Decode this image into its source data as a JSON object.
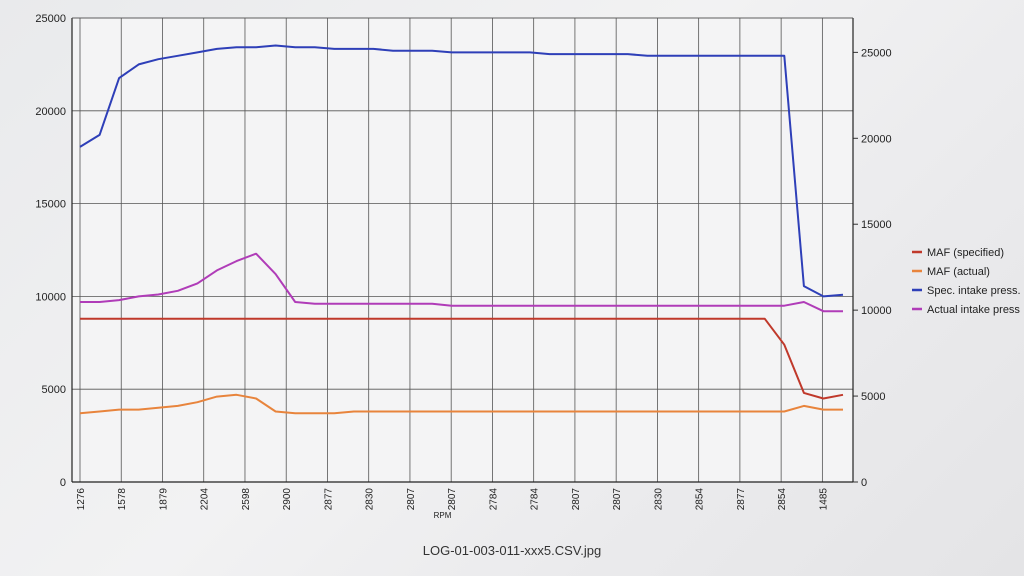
{
  "file_caption": "LOG-01-003-011-xxx5.CSV.jpg",
  "chart_data": {
    "type": "line",
    "title": "",
    "xlabel": "RPM",
    "ylabel": "",
    "y_left": {
      "ylim": [
        0,
        25000
      ],
      "ticks": [
        0,
        5000,
        10000,
        15000,
        20000,
        25000
      ]
    },
    "y_right": {
      "ylim": [
        0,
        27000
      ],
      "ticks": [
        0,
        5000,
        10000,
        15000,
        20000,
        25000
      ]
    },
    "grid": true,
    "legend_position": "right",
    "x_tick_labels": [
      "1276",
      "1578",
      "1879",
      "2204",
      "2598",
      "2900",
      "2877",
      "2830",
      "2807",
      "2807",
      "2784",
      "2784",
      "2807",
      "2807",
      "2830",
      "2854",
      "2877",
      "2854",
      "1485"
    ],
    "x_count": 40,
    "series": [
      {
        "name": "MAF (specified)",
        "color": "#c0392b",
        "axis": "left",
        "values": [
          8800,
          8800,
          8800,
          8800,
          8800,
          8800,
          8800,
          8800,
          8800,
          8800,
          8800,
          8800,
          8800,
          8800,
          8800,
          8800,
          8800,
          8800,
          8800,
          8800,
          8800,
          8800,
          8800,
          8800,
          8800,
          8800,
          8800,
          8800,
          8800,
          8800,
          8800,
          8800,
          8800,
          8800,
          8800,
          8800,
          7400,
          4800,
          4500,
          4700
        ]
      },
      {
        "name": "MAF (actual)",
        "color": "#e8843c",
        "axis": "left",
        "values": [
          3700,
          3800,
          3900,
          3900,
          4000,
          4100,
          4300,
          4600,
          4700,
          4500,
          3800,
          3700,
          3700,
          3700,
          3800,
          3800,
          3800,
          3800,
          3800,
          3800,
          3800,
          3800,
          3800,
          3800,
          3800,
          3800,
          3800,
          3800,
          3800,
          3800,
          3800,
          3800,
          3800,
          3800,
          3800,
          3800,
          3800,
          4100,
          3900,
          3900
        ]
      },
      {
        "name": "Spec. intake press.",
        "color": "#2e3fb8",
        "axis": "right",
        "values": [
          19500,
          20200,
          23500,
          24300,
          24600,
          24800,
          25000,
          25200,
          25300,
          25300,
          25400,
          25300,
          25300,
          25200,
          25200,
          25200,
          25100,
          25100,
          25100,
          25000,
          25000,
          25000,
          25000,
          25000,
          24900,
          24900,
          24900,
          24900,
          24900,
          24800,
          24800,
          24800,
          24800,
          24800,
          24800,
          24800,
          24800,
          11400,
          10800,
          10900
        ]
      },
      {
        "name": "Actual intake press",
        "color": "#b03cb8",
        "axis": "left",
        "values": [
          9700,
          9700,
          9800,
          10000,
          10100,
          10300,
          10700,
          11400,
          11900,
          12300,
          11200,
          9700,
          9600,
          9600,
          9600,
          9600,
          9600,
          9600,
          9600,
          9500,
          9500,
          9500,
          9500,
          9500,
          9500,
          9500,
          9500,
          9500,
          9500,
          9500,
          9500,
          9500,
          9500,
          9500,
          9500,
          9500,
          9500,
          9700,
          9200,
          9200
        ]
      }
    ]
  }
}
